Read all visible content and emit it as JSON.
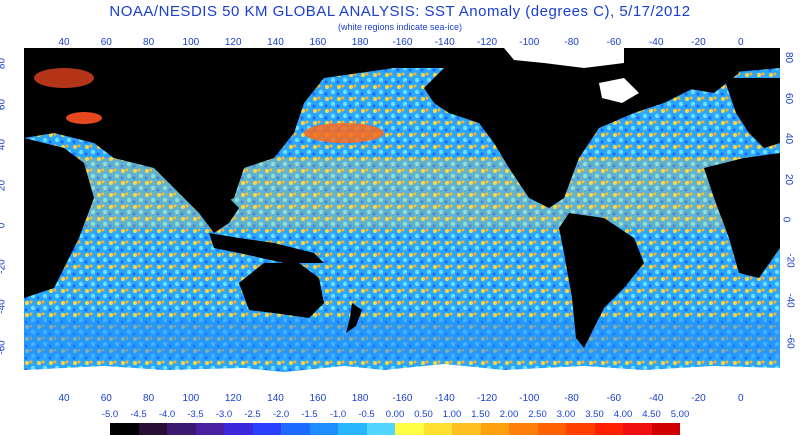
{
  "title": "NOAA/NESDIS 50 KM GLOBAL ANALYSIS: SST Anomaly (degrees C), 5/17/2012",
  "subtitle": "(white regions indicate sea-ice)",
  "map": {
    "projection": "cylindrical",
    "lon_ticks": [
      "40",
      "60",
      "80",
      "100",
      "120",
      "140",
      "160",
      "180",
      "-160",
      "-140",
      "-120",
      "-100",
      "-80",
      "-60",
      "-40",
      "-20",
      "0"
    ],
    "lat_ticks": [
      "80",
      "60",
      "40",
      "20",
      "0",
      "-20",
      "-40",
      "-60"
    ],
    "colors": {
      "land": "#000000",
      "ice": "#ffffff",
      "ocean_base": "#2aa6ff",
      "axis_text": "#1a3fd0"
    }
  },
  "legend": {
    "labels": [
      "-5.0",
      "-4.5",
      "-4.0",
      "-3.5",
      "-3.0",
      "-2.5",
      "-2.0",
      "-1.5",
      "-1.0",
      "-0.5",
      "0.00",
      "0.50",
      "1.00",
      "1.50",
      "2.00",
      "2.50",
      "3.00",
      "3.50",
      "4.00",
      "4.50",
      "5.00"
    ],
    "colors": [
      "#000000",
      "#2a0e36",
      "#3a1a70",
      "#4820a0",
      "#3a2adc",
      "#2a40ff",
      "#1f6bff",
      "#1f8dff",
      "#28b6ff",
      "#52d6ff",
      "#ffff44",
      "#ffe030",
      "#ffc020",
      "#ffa010",
      "#ff8008",
      "#ff6000",
      "#ff4000",
      "#ff2000",
      "#f01010",
      "#d00000"
    ]
  }
}
